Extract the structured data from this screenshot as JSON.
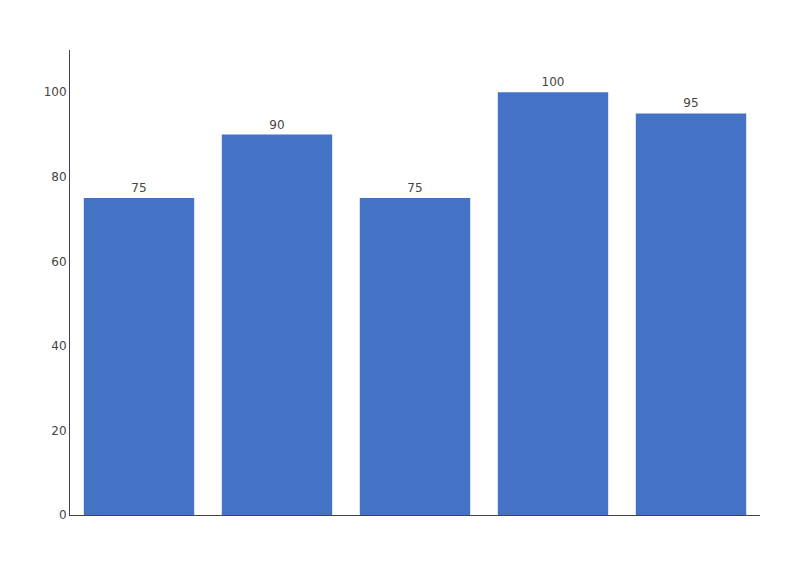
{
  "chart_data": {
    "type": "bar",
    "categories": [
      null,
      null,
      null,
      null,
      null
    ],
    "values": [
      75,
      90,
      75,
      100,
      95
    ],
    "color": "#4472c4",
    "ylim": [
      0,
      110
    ],
    "yticks": [
      0,
      20,
      40,
      60,
      80,
      100
    ],
    "grid": false,
    "data_labels": true,
    "tick_labels": "y"
  }
}
